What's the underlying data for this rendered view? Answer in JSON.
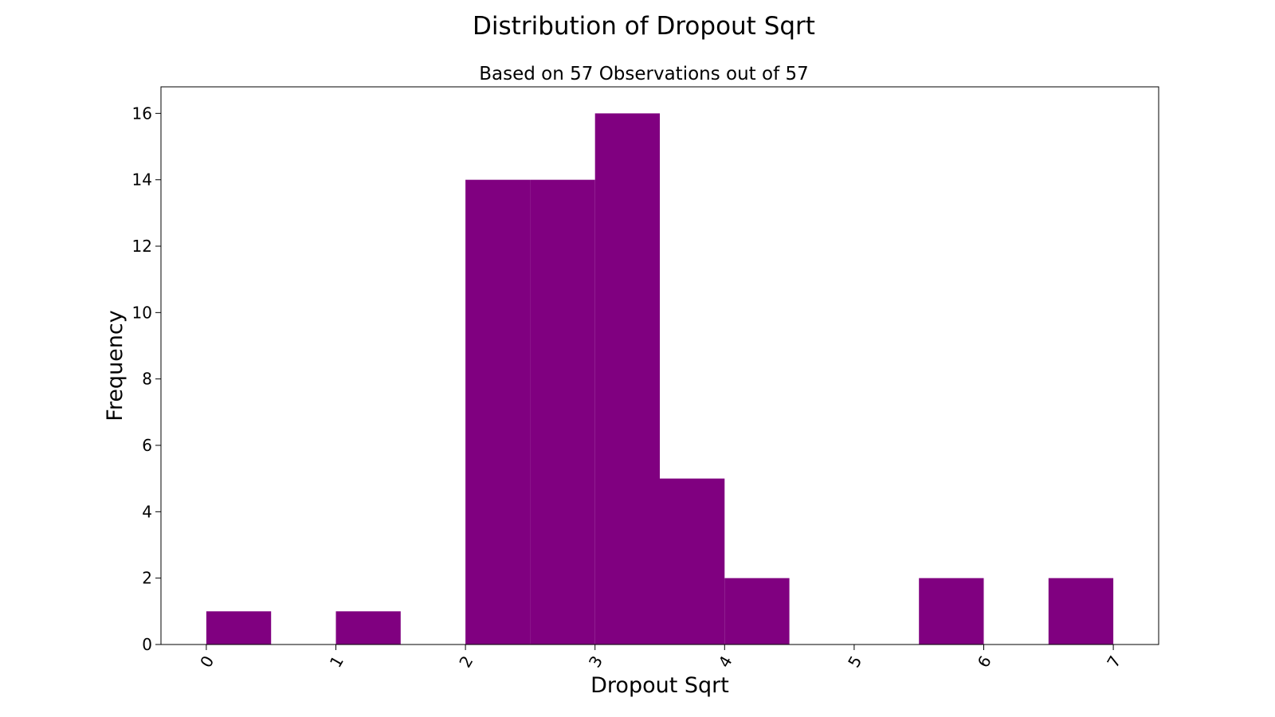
{
  "chart_data": {
    "type": "bar",
    "title": "Distribution of Dropout Sqrt",
    "subtitle": "Based on 57 Observations out of 57",
    "xlabel": "Dropout Sqrt",
    "ylabel": "Frequency",
    "xlim": [
      -0.35,
      7.35
    ],
    "ylim": [
      0,
      16.8
    ],
    "xticks": [
      "0",
      "1",
      "2",
      "3",
      "4",
      "5",
      "6",
      "7"
    ],
    "yticks": [
      "0",
      "2",
      "4",
      "6",
      "8",
      "10",
      "12",
      "14",
      "16"
    ],
    "bar_color": "#800080",
    "grid": false,
    "bins": [
      {
        "x0": 0.0,
        "x1": 0.5,
        "count": 1
      },
      {
        "x0": 0.5,
        "x1": 1.0,
        "count": 0
      },
      {
        "x0": 1.0,
        "x1": 1.5,
        "count": 1
      },
      {
        "x0": 1.5,
        "x1": 2.0,
        "count": 0
      },
      {
        "x0": 2.0,
        "x1": 2.5,
        "count": 14
      },
      {
        "x0": 2.5,
        "x1": 3.0,
        "count": 14
      },
      {
        "x0": 3.0,
        "x1": 3.5,
        "count": 16
      },
      {
        "x0": 3.5,
        "x1": 4.0,
        "count": 5
      },
      {
        "x0": 4.0,
        "x1": 4.5,
        "count": 2
      },
      {
        "x0": 4.5,
        "x1": 5.0,
        "count": 0
      },
      {
        "x0": 5.0,
        "x1": 5.5,
        "count": 0
      },
      {
        "x0": 5.5,
        "x1": 6.0,
        "count": 2
      },
      {
        "x0": 6.0,
        "x1": 6.5,
        "count": 0
      },
      {
        "x0": 6.5,
        "x1": 7.0,
        "count": 2
      }
    ]
  }
}
